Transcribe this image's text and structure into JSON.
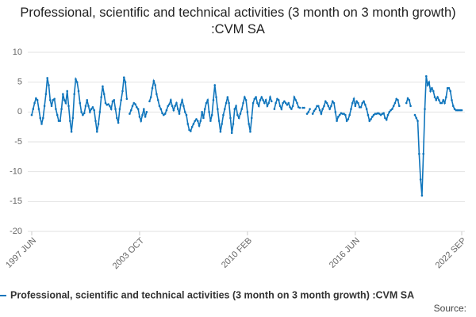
{
  "chart_data": {
    "type": "line",
    "title": "Professional, scientific and technical activities (3 month on 3 month growth) :CVM SA",
    "source": "Source:",
    "categories": [
      "1997 JUN",
      null,
      null,
      null,
      null,
      null,
      null,
      null,
      null,
      null,
      null,
      null,
      null,
      null,
      null,
      null,
      null,
      null,
      null,
      null,
      null,
      null,
      null,
      null,
      null,
      null,
      null,
      null,
      null,
      null,
      null,
      null,
      null,
      null,
      null,
      null,
      null,
      null,
      null,
      null,
      null,
      null,
      null,
      null,
      null,
      null,
      null,
      null,
      null,
      null,
      null,
      null,
      null,
      null,
      null,
      null,
      null,
      null,
      null,
      null,
      null,
      null,
      null,
      null,
      null,
      null,
      null,
      null,
      null,
      null,
      null,
      null,
      null,
      null,
      null,
      null,
      "2003 OCT",
      null,
      null,
      null,
      null,
      null,
      null,
      null,
      null,
      null,
      null,
      null,
      null,
      null,
      null,
      null,
      null,
      null,
      null,
      null,
      null,
      null,
      null,
      null,
      null,
      null,
      null,
      null,
      null,
      null,
      null,
      null,
      null,
      null,
      null,
      null,
      null,
      null,
      null,
      null,
      null,
      null,
      null,
      null,
      null,
      null,
      null,
      null,
      null,
      null,
      null,
      null,
      null,
      null,
      null,
      null,
      null,
      null,
      null,
      null,
      null,
      null,
      null,
      null,
      null,
      null,
      null,
      null,
      null,
      null,
      null,
      null,
      null,
      null,
      null,
      null,
      "2010 FEB",
      null,
      null,
      null,
      null,
      null,
      null,
      null,
      null,
      null,
      null,
      null,
      null,
      null,
      null,
      null,
      null,
      null,
      null,
      null,
      null,
      null,
      null,
      null,
      null,
      null,
      null,
      null,
      null,
      null,
      null,
      null,
      null,
      null,
      null,
      null,
      null,
      null,
      null,
      null,
      null,
      null,
      null,
      null,
      null,
      null,
      null,
      null,
      null,
      null,
      null,
      null,
      null,
      null,
      null,
      null,
      null,
      null,
      null,
      null,
      null,
      null,
      null,
      null,
      null,
      null,
      null,
      null,
      null,
      null,
      null,
      null,
      null,
      null,
      null,
      null,
      "2016 JUN",
      null,
      null,
      null,
      null,
      null,
      null,
      null,
      null,
      null,
      null,
      null,
      null,
      null,
      null,
      null,
      null,
      null,
      null,
      null,
      null,
      null,
      null,
      null,
      null,
      null,
      null,
      null,
      null,
      null,
      null,
      null,
      null,
      null,
      null,
      null,
      null,
      null,
      null,
      null,
      null,
      null,
      null,
      null,
      null,
      null,
      null,
      null,
      null,
      null,
      null,
      null,
      null,
      null,
      null,
      null,
      null,
      null,
      null,
      null,
      null,
      null,
      null,
      null,
      null,
      null,
      null,
      null,
      null,
      null,
      null,
      null,
      null,
      null,
      null,
      "2022 SEP"
    ],
    "series": [
      {
        "name": "Professional, scientific and technical activities (3 month on 3 month growth) :CVM SA",
        "color": "#0f75bc",
        "values": [
          -0.5,
          0.5,
          1.5,
          2.3,
          2.0,
          0.5,
          -1.0,
          -2.0,
          -1.0,
          1.0,
          3.0,
          5.7,
          4.5,
          2.0,
          1.0,
          2.0,
          2.2,
          0.5,
          -0.5,
          -1.5,
          -1.5,
          0.5,
          3.0,
          2.0,
          1.5,
          3.5,
          1.0,
          -1.5,
          -3.3,
          -1.0,
          3.0,
          5.5,
          5.0,
          3.5,
          1.5,
          0.0,
          -0.5,
          -0.2,
          1.0,
          2.0,
          1.0,
          0.0,
          0.5,
          0.8,
          0.3,
          -1.5,
          -3.3,
          -2.0,
          0.0,
          2.5,
          4.3,
          3.0,
          1.5,
          1.2,
          1.3,
          1.0,
          0.5,
          1.8,
          2.0,
          0.5,
          -1.0,
          -1.8,
          0.5,
          2.0,
          3.5,
          5.8,
          5.0,
          2.2,
          null,
          -0.3,
          0.3,
          1.0,
          1.5,
          1.3,
          0.8,
          0.5,
          -0.8,
          -1.5,
          -0.5,
          0.5,
          -0.8,
          0.0,
          null,
          1.8,
          2.5,
          4.0,
          5.2,
          4.5,
          3.0,
          2.0,
          1.0,
          0.5,
          -0.2,
          -0.5,
          -0.3,
          0.3,
          1.0,
          1.3,
          2.0,
          1.0,
          0.3,
          1.0,
          1.5,
          0.5,
          -0.3,
          1.2,
          2.0,
          1.0,
          0.0,
          -0.5,
          -2.0,
          -3.0,
          -3.2,
          -2.5,
          -2.0,
          -1.5,
          -1.2,
          -1.5,
          -2.3,
          -1.5,
          0.0,
          -1.0,
          0.5,
          1.5,
          2.0,
          0.0,
          -1.5,
          -0.5,
          2.0,
          4.5,
          2.5,
          0.5,
          -1.5,
          -3.3,
          -2.0,
          -0.5,
          0.5,
          1.5,
          2.5,
          1.5,
          -1.0,
          -3.5,
          -2.0,
          0.5,
          1.0,
          -0.5,
          -1.0,
          -0.3,
          0.5,
          1.5,
          2.5,
          2.0,
          0.0,
          -2.0,
          -3.3,
          -1.0,
          1.5,
          2.2,
          2.5,
          1.5,
          1.0,
          2.0,
          2.5,
          2.0,
          1.5,
          2.0,
          1.0,
          1.5,
          2.5,
          1.8,
          null,
          0.5,
          1.5,
          2.2,
          2.0,
          1.0,
          0.5,
          1.5,
          1.8,
          1.5,
          1.2,
          1.5,
          0.8,
          0.5,
          1.0,
          2.5,
          2.0,
          1.5,
          0.8,
          0.7,
          null,
          0.7,
          0.7,
          null,
          -0.3,
          0.0,
          0.5,
          null,
          -0.3,
          0.2,
          0.5,
          1.0,
          1.0,
          0.3,
          -0.3,
          0.5,
          1.0,
          1.8,
          1.5,
          1.0,
          0.5,
          1.0,
          1.8,
          1.5,
          0.0,
          -1.5,
          -0.8,
          -0.5,
          -0.2,
          -0.3,
          -0.3,
          -0.5,
          -1.5,
          -1.2,
          -0.5,
          0.5,
          1.5,
          2.2,
          1.0,
          1.8,
          1.5,
          0.8,
          0.8,
          1.5,
          1.8,
          1.2,
          0.5,
          -0.5,
          -1.5,
          -1.2,
          -0.8,
          -0.5,
          -0.3,
          -0.3,
          -0.2,
          -0.3,
          -0.5,
          -0.3,
          -0.2,
          -1.0,
          -1.3,
          -0.5,
          0.0,
          0.3,
          0.5,
          1.0,
          1.5,
          2.2,
          2.0,
          1.0,
          null,
          null,
          null,
          null,
          1.5,
          2.3,
          2.0,
          1.0,
          null,
          null,
          -0.5,
          -1.0,
          -1.5,
          -7.0,
          -11.3,
          -14.0,
          -7.0,
          0.5,
          6.0,
          4.5,
          5.0,
          3.5,
          4.0,
          3.5,
          2.5,
          2.0,
          2.5,
          2.0,
          1.5,
          1.5,
          2.0,
          1.5,
          2.5,
          4.0,
          4.0,
          3.5,
          2.0,
          1.0,
          0.5,
          0.3,
          0.3,
          0.3,
          0.3,
          0.3
        ]
      }
    ],
    "ylim": [
      -20,
      10
    ],
    "yticks": [
      -20,
      -15,
      -10,
      -5,
      0,
      5,
      10
    ],
    "grid": true,
    "legend": "bottom"
  }
}
